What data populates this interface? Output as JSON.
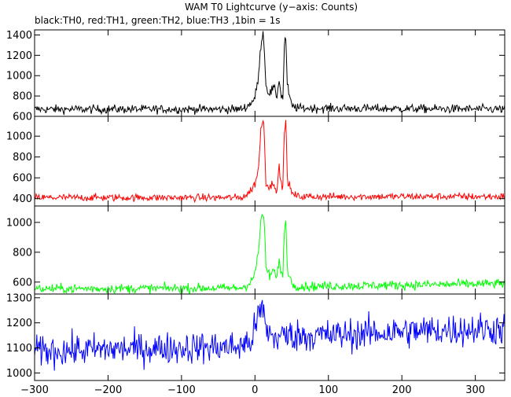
{
  "title": "WAM T0 Lightcurve (y−axis: Counts)",
  "subtitle": "black:TH0, red:TH1, green:TH2, blue:TH3 ,1bin = 1s",
  "chart_data": [
    {
      "type": "line",
      "name": "TH0",
      "color": "#000000",
      "xlim": [
        -300,
        340
      ],
      "ylim": [
        600,
        1450
      ],
      "yticks": [
        600,
        800,
        1000,
        1200,
        1400
      ],
      "baseline": 670,
      "noise": 30,
      "points": [
        [
          -300,
          670
        ],
        [
          -20,
          670
        ],
        [
          -10,
          700
        ],
        [
          0,
          780
        ],
        [
          5,
          1000
        ],
        [
          8,
          1300
        ],
        [
          10,
          1420
        ],
        [
          12,
          1380
        ],
        [
          15,
          900
        ],
        [
          20,
          820
        ],
        [
          25,
          880
        ],
        [
          30,
          800
        ],
        [
          33,
          980
        ],
        [
          35,
          820
        ],
        [
          38,
          780
        ],
        [
          40,
          1300
        ],
        [
          42,
          1380
        ],
        [
          44,
          900
        ],
        [
          50,
          700
        ],
        [
          60,
          680
        ],
        [
          340,
          670
        ]
      ]
    },
    {
      "type": "line",
      "name": "TH1",
      "color": "#ff0000",
      "xlim": [
        -300,
        340
      ],
      "ylim": [
        330,
        1190
      ],
      "yticks": [
        400,
        600,
        800,
        1000
      ],
      "baseline": 410,
      "noise": 25,
      "points": [
        [
          -300,
          410
        ],
        [
          -20,
          410
        ],
        [
          -10,
          440
        ],
        [
          0,
          540
        ],
        [
          5,
          700
        ],
        [
          8,
          1050
        ],
        [
          10,
          1170
        ],
        [
          12,
          1120
        ],
        [
          15,
          560
        ],
        [
          20,
          500
        ],
        [
          25,
          560
        ],
        [
          30,
          480
        ],
        [
          33,
          700
        ],
        [
          35,
          560
        ],
        [
          38,
          520
        ],
        [
          40,
          1050
        ],
        [
          42,
          1150
        ],
        [
          44,
          600
        ],
        [
          50,
          450
        ],
        [
          60,
          420
        ],
        [
          340,
          420
        ]
      ]
    },
    {
      "type": "line",
      "name": "TH2",
      "color": "#00ff00",
      "xlim": [
        -300,
        340
      ],
      "ylim": [
        520,
        1110
      ],
      "yticks": [
        600,
        800,
        1000
      ],
      "baseline": 560,
      "noise": 22,
      "points": [
        [
          -300,
          555
        ],
        [
          -20,
          560
        ],
        [
          -10,
          580
        ],
        [
          0,
          650
        ],
        [
          5,
          820
        ],
        [
          8,
          1000
        ],
        [
          10,
          1070
        ],
        [
          12,
          1040
        ],
        [
          15,
          700
        ],
        [
          20,
          640
        ],
        [
          25,
          680
        ],
        [
          30,
          620
        ],
        [
          33,
          780
        ],
        [
          35,
          660
        ],
        [
          38,
          640
        ],
        [
          40,
          960
        ],
        [
          42,
          1010
        ],
        [
          44,
          700
        ],
        [
          50,
          590
        ],
        [
          60,
          570
        ],
        [
          340,
          590
        ]
      ]
    },
    {
      "type": "line",
      "name": "TH3",
      "color": "#0000ff",
      "xlim": [
        -300,
        340
      ],
      "ylim": [
        970,
        1315
      ],
      "yticks": [
        1000,
        1100,
        1200,
        1300
      ],
      "baseline": 1090,
      "noise": 45,
      "points": [
        [
          -300,
          1085
        ],
        [
          -200,
          1095
        ],
        [
          -100,
          1100
        ],
        [
          -20,
          1105
        ],
        [
          -5,
          1130
        ],
        [
          5,
          1230
        ],
        [
          10,
          1260
        ],
        [
          15,
          1180
        ],
        [
          25,
          1140
        ],
        [
          40,
          1150
        ],
        [
          100,
          1150
        ],
        [
          200,
          1165
        ],
        [
          300,
          1175
        ],
        [
          340,
          1175
        ]
      ]
    }
  ],
  "xaxis": {
    "ticks": [
      -300,
      -200,
      -100,
      0,
      100,
      200,
      300
    ]
  }
}
